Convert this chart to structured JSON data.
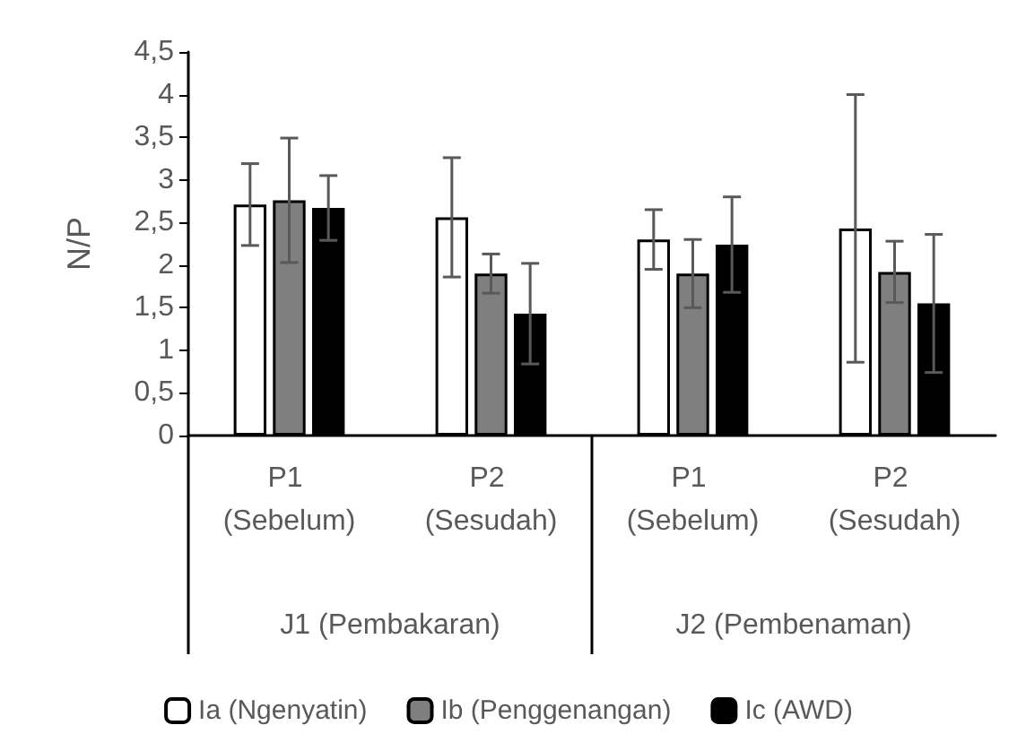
{
  "chart_data": {
    "type": "bar",
    "ylabel": "N/P",
    "categories": [
      "P1 (Sebelum)",
      "P2 (Sesudah)",
      "P1 (Sebelum)",
      "P2 (Sesudah)"
    ],
    "annotations": [
      "J1 (Pembakaran)",
      "J2 (Pembenaman)"
    ],
    "series": [
      {
        "name": "Ia (Ngenyatin)",
        "color": "#ffffff",
        "values": [
          2.71,
          2.56,
          2.3,
          2.43
        ],
        "errors": [
          0.48,
          0.7,
          0.35,
          1.57
        ]
      },
      {
        "name": "Ib (Penggenangan)",
        "color": "#7f7f7f",
        "values": [
          2.76,
          1.9,
          1.9,
          1.92
        ],
        "errors": [
          0.73,
          0.23,
          0.4,
          0.36
        ]
      },
      {
        "name": "Ic (AWD)",
        "color": "#000000",
        "values": [
          2.67,
          1.43,
          2.24,
          1.55
        ],
        "errors": [
          0.38,
          0.59,
          0.56,
          0.81
        ]
      }
    ],
    "ylim": [
      0,
      4.5
    ],
    "yticks": [
      0,
      {
        "value": 0.5,
        "label": "0,5"
      },
      1,
      {
        "value": 1.5,
        "label": "1,5"
      },
      2,
      {
        "value": 2.5,
        "label": "2,5"
      },
      3,
      {
        "value": 3.5,
        "label": "3,5"
      },
      4,
      {
        "value": 4.5,
        "label": "4,5"
      }
    ],
    "grid": false,
    "legend": "bottom"
  }
}
